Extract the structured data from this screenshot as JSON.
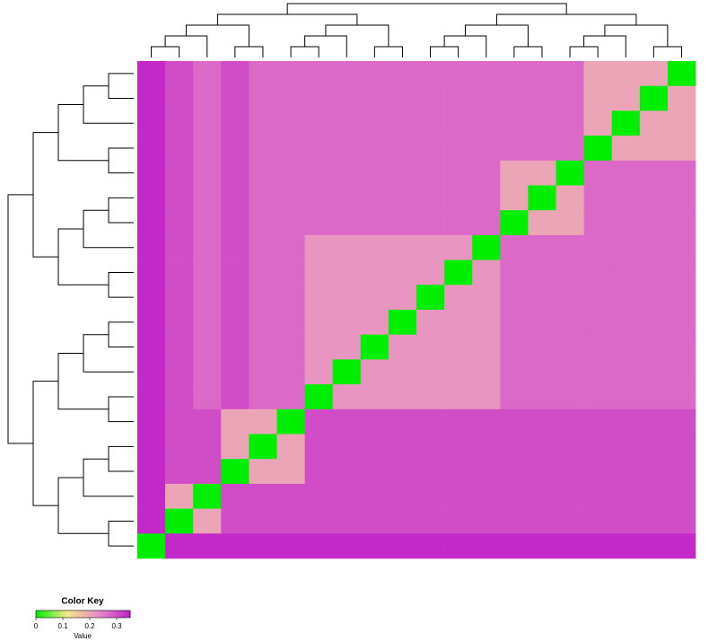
{
  "chart_data": {
    "type": "heatmap",
    "legend_title": "Color Key",
    "legend_axis_label": "Value",
    "zlim": [
      0,
      0.35
    ],
    "zticks": [
      0,
      0.1,
      0.2,
      0.3
    ],
    "colors": [
      "#00ee00",
      "#f5e98a",
      "#e88ac8",
      "#c020c8"
    ],
    "values": [
      [
        0.34,
        0.3,
        0.27,
        0.3,
        0.27,
        0.27,
        0.27,
        0.27,
        0.27,
        0.27,
        0.27,
        0.27,
        0.27,
        0.27,
        0.27,
        0.27,
        0.2,
        0.2,
        0.2,
        0
      ],
      [
        0.34,
        0.3,
        0.27,
        0.3,
        0.27,
        0.27,
        0.27,
        0.27,
        0.27,
        0.27,
        0.27,
        0.27,
        0.27,
        0.27,
        0.27,
        0.27,
        0.2,
        0.2,
        0,
        0.2
      ],
      [
        0.34,
        0.3,
        0.27,
        0.3,
        0.27,
        0.27,
        0.27,
        0.27,
        0.27,
        0.27,
        0.27,
        0.27,
        0.27,
        0.27,
        0.27,
        0.27,
        0.2,
        0,
        0.2,
        0.2
      ],
      [
        0.34,
        0.3,
        0.27,
        0.3,
        0.27,
        0.27,
        0.27,
        0.27,
        0.27,
        0.27,
        0.27,
        0.27,
        0.27,
        0.27,
        0.27,
        0.27,
        0,
        0.2,
        0.2,
        0.2
      ],
      [
        0.34,
        0.3,
        0.27,
        0.3,
        0.27,
        0.27,
        0.27,
        0.27,
        0.27,
        0.27,
        0.27,
        0.27,
        0.27,
        0.2,
        0.2,
        0,
        0.27,
        0.27,
        0.27,
        0.27
      ],
      [
        0.34,
        0.3,
        0.27,
        0.3,
        0.27,
        0.27,
        0.27,
        0.27,
        0.27,
        0.27,
        0.27,
        0.27,
        0.27,
        0.2,
        0,
        0.2,
        0.27,
        0.27,
        0.27,
        0.27
      ],
      [
        0.34,
        0.3,
        0.27,
        0.3,
        0.27,
        0.27,
        0.27,
        0.27,
        0.27,
        0.27,
        0.27,
        0.27,
        0.27,
        0,
        0.2,
        0.2,
        0.27,
        0.27,
        0.27,
        0.27
      ],
      [
        0.34,
        0.3,
        0.27,
        0.3,
        0.27,
        0.27,
        0.22,
        0.22,
        0.22,
        0.22,
        0.22,
        0.22,
        0,
        0.27,
        0.27,
        0.27,
        0.27,
        0.27,
        0.27,
        0.27
      ],
      [
        0.34,
        0.3,
        0.27,
        0.3,
        0.27,
        0.27,
        0.22,
        0.22,
        0.22,
        0.22,
        0.22,
        0,
        0.22,
        0.27,
        0.27,
        0.27,
        0.27,
        0.27,
        0.27,
        0.27
      ],
      [
        0.34,
        0.3,
        0.27,
        0.3,
        0.27,
        0.27,
        0.22,
        0.22,
        0.22,
        0.22,
        0,
        0.22,
        0.22,
        0.27,
        0.27,
        0.27,
        0.27,
        0.27,
        0.27,
        0.27
      ],
      [
        0.34,
        0.3,
        0.27,
        0.3,
        0.27,
        0.27,
        0.22,
        0.22,
        0.22,
        0,
        0.22,
        0.22,
        0.22,
        0.27,
        0.27,
        0.27,
        0.27,
        0.27,
        0.27,
        0.27
      ],
      [
        0.34,
        0.3,
        0.27,
        0.3,
        0.27,
        0.27,
        0.22,
        0.22,
        0,
        0.22,
        0.22,
        0.22,
        0.22,
        0.27,
        0.27,
        0.27,
        0.27,
        0.27,
        0.27,
        0.27
      ],
      [
        0.34,
        0.3,
        0.27,
        0.3,
        0.27,
        0.27,
        0.22,
        0,
        0.22,
        0.22,
        0.22,
        0.22,
        0.22,
        0.27,
        0.27,
        0.27,
        0.27,
        0.27,
        0.27,
        0.27
      ],
      [
        0.34,
        0.3,
        0.27,
        0.3,
        0.27,
        0.27,
        0,
        0.22,
        0.22,
        0.22,
        0.22,
        0.22,
        0.22,
        0.27,
        0.27,
        0.27,
        0.27,
        0.27,
        0.27,
        0.27
      ],
      [
        0.34,
        0.3,
        0.3,
        0.2,
        0.2,
        0,
        0.3,
        0.3,
        0.3,
        0.3,
        0.3,
        0.3,
        0.3,
        0.3,
        0.3,
        0.3,
        0.3,
        0.3,
        0.3,
        0.3
      ],
      [
        0.34,
        0.3,
        0.3,
        0.2,
        0,
        0.2,
        0.3,
        0.3,
        0.3,
        0.3,
        0.3,
        0.3,
        0.3,
        0.3,
        0.3,
        0.3,
        0.3,
        0.3,
        0.3,
        0.3
      ],
      [
        0.34,
        0.3,
        0.3,
        0,
        0.2,
        0.2,
        0.3,
        0.3,
        0.3,
        0.3,
        0.3,
        0.3,
        0.3,
        0.3,
        0.3,
        0.3,
        0.3,
        0.3,
        0.3,
        0.3
      ],
      [
        0.34,
        0.2,
        0,
        0.3,
        0.3,
        0.3,
        0.3,
        0.3,
        0.3,
        0.3,
        0.3,
        0.3,
        0.3,
        0.3,
        0.3,
        0.3,
        0.3,
        0.3,
        0.3,
        0.3
      ],
      [
        0.34,
        0,
        0.2,
        0.3,
        0.3,
        0.3,
        0.3,
        0.3,
        0.3,
        0.3,
        0.3,
        0.3,
        0.3,
        0.3,
        0.3,
        0.3,
        0.3,
        0.3,
        0.3,
        0.3
      ],
      [
        0,
        0.34,
        0.34,
        0.34,
        0.34,
        0.34,
        0.34,
        0.34,
        0.34,
        0.34,
        0.34,
        0.34,
        0.34,
        0.34,
        0.34,
        0.34,
        0.34,
        0.34,
        0.34,
        0.34
      ]
    ]
  }
}
